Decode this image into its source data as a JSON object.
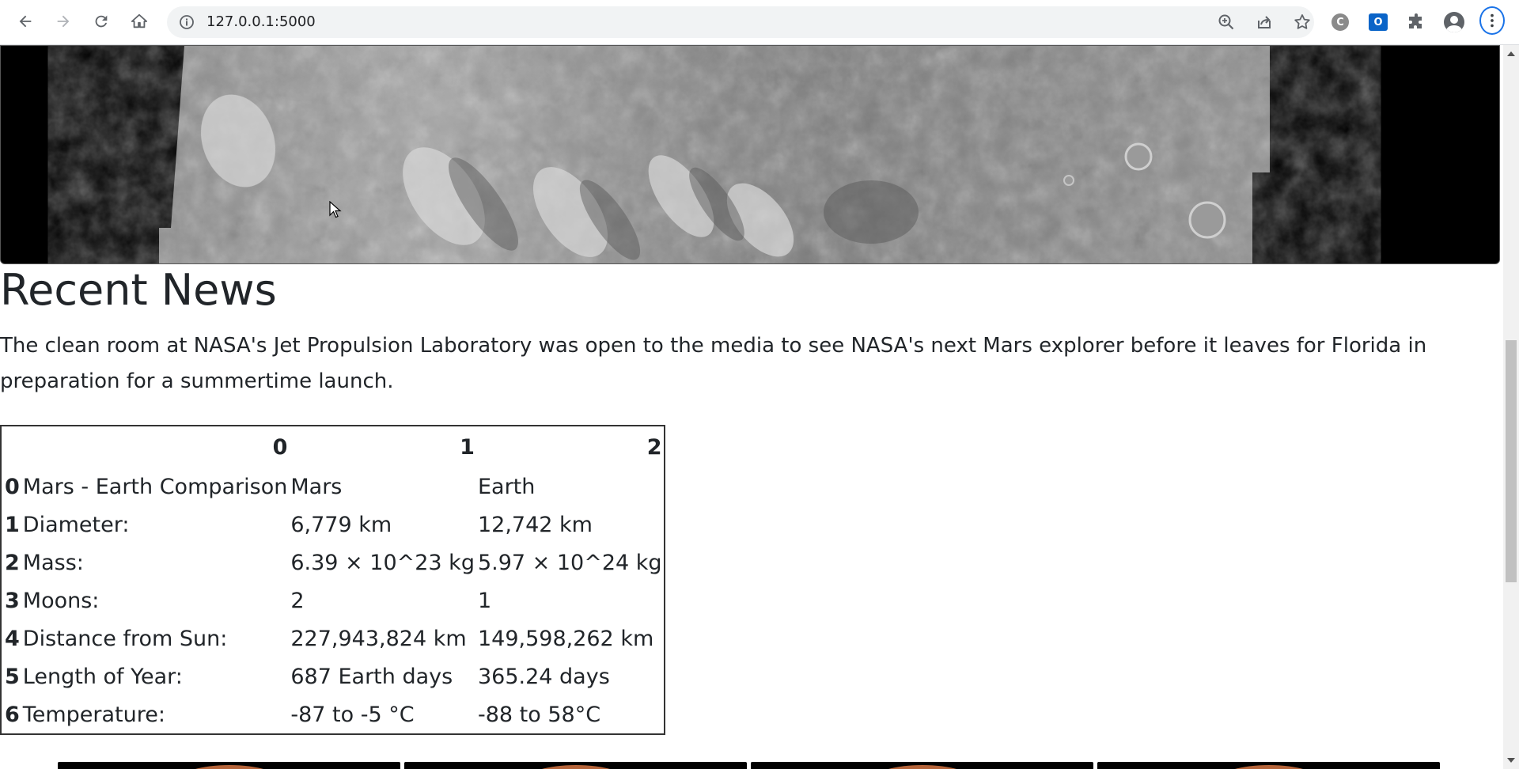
{
  "browser": {
    "url": "127.0.0.1:5000",
    "extension_letter": "C",
    "outlook_letter": "O"
  },
  "news": {
    "title": "Recent News",
    "paragraph": "The clean room at NASA's Jet Propulsion Laboratory was open to the media to see NASA's next Mars explorer before it leaves for Florida in preparation for a summertime launch."
  },
  "facts_table": {
    "headers": [
      "",
      "0",
      "1",
      "2"
    ],
    "rows": [
      {
        "index": "0",
        "label": "Mars - Earth Comparison",
        "mars": "Mars",
        "earth": "Earth"
      },
      {
        "index": "1",
        "label": "Diameter:",
        "mars": "6,779 km",
        "earth": "12,742 km"
      },
      {
        "index": "2",
        "label": "Mass:",
        "mars": "6.39 × 10^23 kg",
        "earth": "5.97 × 10^24 kg"
      },
      {
        "index": "3",
        "label": "Moons:",
        "mars": "2",
        "earth": "1"
      },
      {
        "index": "4",
        "label": "Distance from Sun:",
        "mars": "227,943,824 km",
        "earth": "149,598,262 km"
      },
      {
        "index": "5",
        "label": "Length of Year:",
        "mars": "687 Earth days",
        "earth": "365.24 days"
      },
      {
        "index": "6",
        "label": "Temperature:",
        "mars": "-87 to -5 °C",
        "earth": "-88 to 58°C"
      }
    ]
  },
  "colors": {
    "accent": "#1a73e8",
    "text": "#212529",
    "outlook_blue": "#0a64c8"
  }
}
